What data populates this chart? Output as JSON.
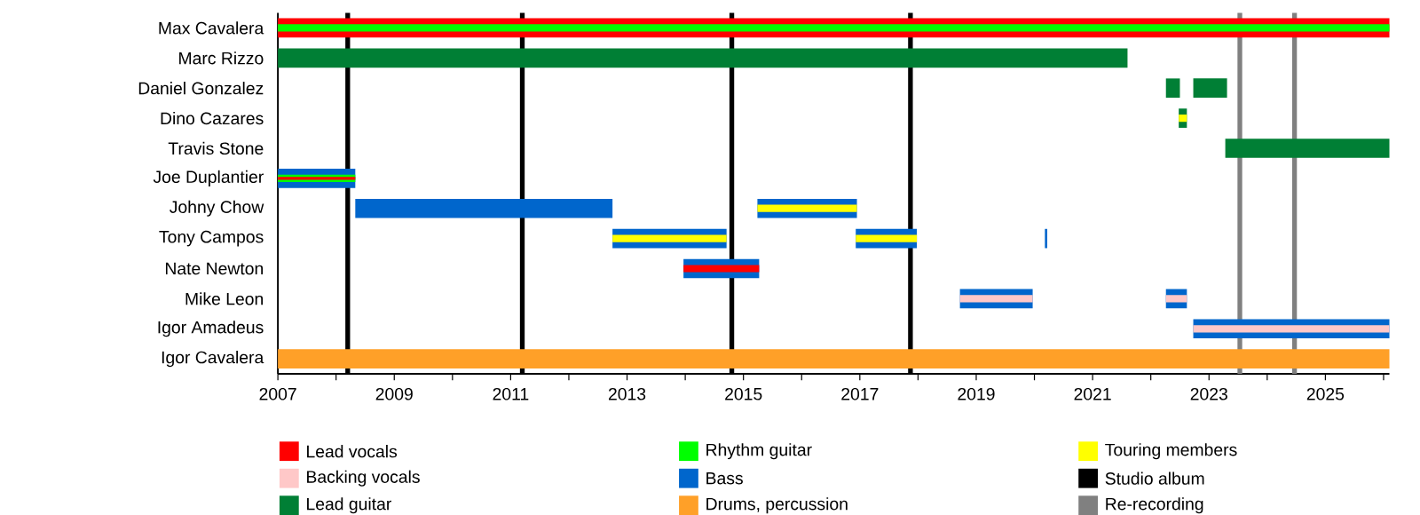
{
  "chart_data": {
    "type": "bar",
    "orientation": "horizontal",
    "categories": [
      "Max Cavalera",
      "Marc Rizzo",
      "Daniel Gonzalez",
      "Dino Cazares",
      "Travis Stone",
      "Joe Duplantier",
      "Johny Chow",
      "Tony Campos",
      "Nate Newton",
      "Mike Leon",
      "Igor Amadeus",
      "Igor Cavalera"
    ],
    "xlim": [
      2007,
      2026.1
    ],
    "xticks": [
      2007,
      {
        "value": 2008,
        "label": null
      },
      2009,
      {
        "value": 2010,
        "label": null
      },
      2011,
      {
        "value": 2012,
        "label": null
      },
      2013,
      {
        "value": 2014,
        "label": null
      },
      2015,
      {
        "value": 2016,
        "label": null
      },
      2017,
      {
        "value": 2018,
        "label": null
      },
      2019,
      {
        "value": 2020,
        "label": null
      },
      2021,
      {
        "value": 2022,
        "label": null
      },
      2023,
      {
        "value": 2024,
        "label": null
      },
      2025,
      {
        "value": 2026,
        "label": null
      }
    ],
    "series": [
      {
        "name": "Lead vocals",
        "color": "#ff0000",
        "base": [
          2007,
          null,
          null,
          null,
          null,
          null,
          null,
          null,
          null,
          null,
          null,
          null
        ],
        "values": [
          19.1,
          null,
          null,
          null,
          null,
          null,
          null,
          null,
          null,
          null,
          null,
          null
        ]
      },
      {
        "name": "Backing vocals",
        "color": "#ffc8c8",
        "base": [
          null,
          null,
          null,
          null,
          null,
          null,
          null,
          null,
          null,
          null,
          null,
          null
        ],
        "values": [
          null,
          null,
          null,
          null,
          null,
          null,
          null,
          null,
          null,
          null,
          null,
          null
        ]
      },
      {
        "name": "Lead guitar",
        "color": "#007f35",
        "base": [
          null,
          2007,
          2022.26,
          2022.48,
          2023.28,
          null,
          null,
          null,
          null,
          null,
          null,
          null
        ],
        "values": [
          null,
          14.6,
          0.24,
          0.14,
          2.82,
          null,
          null,
          null,
          null,
          null,
          null,
          null
        ]
      },
      {
        "name": "Rhythm guitar",
        "color": "#00ff00",
        "base": [
          2007,
          null,
          null,
          null,
          null,
          null,
          null,
          null,
          null,
          null,
          null,
          null
        ],
        "values": [
          19.1,
          null,
          null,
          null,
          null,
          null,
          null,
          null,
          null,
          null,
          null,
          null
        ]
      },
      {
        "name": "Bass",
        "color": "#0066cc",
        "base": [
          null,
          null,
          null,
          null,
          null,
          2007,
          2008.33,
          2012.75,
          2013.97,
          2018.72,
          2022.73,
          null
        ],
        "values": [
          null,
          null,
          null,
          null,
          null,
          1.33,
          4.42,
          1.96,
          1.3,
          1.25,
          3.37,
          null
        ]
      },
      {
        "name": "Drums, percussion",
        "color": "#ffa028",
        "base": [
          null,
          null,
          null,
          null,
          null,
          null,
          null,
          null,
          null,
          null,
          null,
          2007
        ],
        "values": [
          null,
          null,
          null,
          null,
          null,
          null,
          null,
          null,
          null,
          null,
          null,
          19.1
        ]
      },
      {
        "name": "Touring members",
        "color": "#ffff00",
        "base": [
          null,
          null,
          null,
          2022.48,
          null,
          null,
          null,
          2012.75,
          null,
          null,
          null,
          null
        ],
        "values": [
          null,
          null,
          null,
          0.14,
          null,
          null,
          null,
          1.96,
          null,
          null,
          null,
          null
        ]
      },
      {
        "color": "#007f35",
        "base": [
          null,
          null,
          2022.73,
          null,
          null,
          null,
          null,
          null,
          null,
          null,
          null,
          null
        ],
        "values": [
          null,
          null,
          0.58,
          null,
          null,
          null,
          null,
          null,
          null,
          null,
          null,
          null
        ]
      },
      {
        "color": "#0066cc",
        "base": [
          null,
          null,
          null,
          null,
          null,
          null,
          2015.24,
          2016.93,
          null,
          2022.26,
          null,
          null
        ],
        "values": [
          null,
          null,
          null,
          null,
          null,
          null,
          1.71,
          1.05,
          null,
          0.36,
          null,
          null
        ]
      },
      {
        "color": "#0066cc",
        "base": [
          null,
          null,
          null,
          null,
          null,
          null,
          null,
          2020.18,
          null,
          null,
          null,
          null
        ],
        "values": [
          null,
          null,
          null,
          null,
          null,
          null,
          null,
          0.04,
          null,
          null,
          null,
          null
        ]
      },
      {
        "color": "#ffff00",
        "base": [
          null,
          null,
          null,
          null,
          null,
          null,
          2015.24,
          2016.93,
          null,
          null,
          null,
          null
        ],
        "values": [
          null,
          null,
          null,
          null,
          null,
          null,
          1.71,
          1.05,
          null,
          null,
          null,
          null
        ]
      },
      {
        "color": "#ff0000",
        "base": [
          null,
          null,
          null,
          null,
          null,
          null,
          null,
          null,
          2013.97,
          null,
          null,
          null
        ],
        "values": [
          null,
          null,
          null,
          null,
          null,
          null,
          null,
          null,
          1.3,
          null,
          null,
          null
        ]
      },
      {
        "color": "#ffc8c8",
        "base": [
          null,
          null,
          null,
          null,
          null,
          null,
          null,
          null,
          null,
          2018.72,
          2022.73,
          null
        ],
        "values": [
          null,
          null,
          null,
          null,
          null,
          null,
          null,
          null,
          null,
          1.25,
          3.37,
          null
        ]
      },
      {
        "color": "#ffc8c8",
        "base": [
          null,
          null,
          null,
          null,
          null,
          null,
          null,
          null,
          null,
          2022.26,
          null,
          null
        ],
        "values": [
          null,
          null,
          null,
          null,
          null,
          null,
          null,
          null,
          null,
          0.36,
          null,
          null
        ]
      },
      {
        "color": "#00ff00",
        "base": [
          null,
          null,
          null,
          null,
          null,
          2007,
          null,
          null,
          null,
          null,
          null,
          null
        ],
        "values": [
          null,
          null,
          null,
          null,
          null,
          1.33,
          null,
          null,
          null,
          null,
          null,
          null
        ]
      },
      {
        "color": "#ff0000",
        "base": [
          null,
          null,
          null,
          null,
          null,
          2007,
          null,
          null,
          null,
          null,
          null,
          null
        ],
        "values": [
          null,
          null,
          null,
          null,
          null,
          1.33,
          null,
          null,
          null,
          null,
          null,
          null
        ]
      }
    ],
    "ref_lines": [
      {
        "axis": "x",
        "value": 2008.2,
        "label": "Studio album",
        "color": "#000000"
      },
      {
        "axis": "x",
        "value": 2011.2,
        "color": "#000000"
      },
      {
        "axis": "x",
        "value": 2014.8,
        "color": "#000000"
      },
      {
        "axis": "x",
        "value": 2017.87,
        "color": "#000000"
      },
      {
        "axis": "x",
        "value": 2023.53,
        "label": "Re-recording",
        "color": "#808080"
      },
      {
        "axis": "x",
        "value": 2024.47,
        "color": "#808080"
      }
    ],
    "legend": "bottom"
  }
}
